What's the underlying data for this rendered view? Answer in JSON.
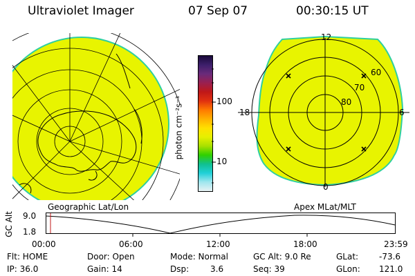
{
  "header": {
    "title": "Ultraviolet Imager",
    "date": "07 Sep 07",
    "time": "00:30:15 UT"
  },
  "colorbar": {
    "unit_label": "photon cm⁻²s⁻¹",
    "ticks": [
      "100",
      "10"
    ],
    "colors": [
      "#1a0a3a",
      "#3d1f6b",
      "#6a2a7a",
      "#9a2050",
      "#c01818",
      "#e03010",
      "#ff7a00",
      "#ffb000",
      "#ffe000",
      "#e6f000",
      "#a8e000",
      "#30d000",
      "#10c090",
      "#20d0d8",
      "#9fe6ee",
      "#e8f2f4"
    ]
  },
  "geo_map": {
    "label": "Geographic Lat/Lon",
    "fill": "#e8f400",
    "rim": "#2ecfa0"
  },
  "polar_map": {
    "label": "Apex  MLat/MLT",
    "top": "12",
    "left": "18",
    "right": "6",
    "bottom": "0",
    "lat_60": "60",
    "lat_70": "70",
    "lat_80": "80"
  },
  "altitude_plot": {
    "axis_label": "GC Alt",
    "y_top": "9.0",
    "y_bottom": "1.8",
    "x_ticks": [
      "00:00",
      "06:00",
      "12:00",
      "18:00",
      "23:59"
    ],
    "marker_color": "#c01818"
  },
  "status": {
    "flt": "Flt: HOME",
    "ip": "IP: 36.0",
    "door": "Door: Open",
    "gain": "Gain: 14",
    "mode": "Mode: Normal",
    "dsp_label": "Dsp:",
    "dsp_value": "3.6",
    "gc_alt": "GC Alt: 9.0 Re",
    "seq": "Seq: 39",
    "glat_label": "GLat:",
    "glat_value": "-73.6",
    "glon_label": "GLon:",
    "glon_value": "121.0"
  }
}
